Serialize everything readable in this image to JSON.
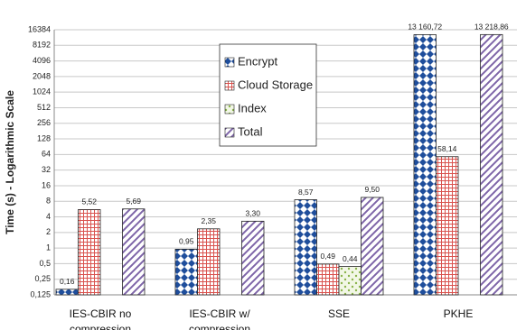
{
  "chart_data": {
    "type": "bar",
    "y_label": "Time (s) - Logarithmic Scale",
    "log_scale": true,
    "grid": true,
    "legend": "top-center",
    "categories": [
      "IES-CBIR no compression",
      "IES-CBIR w/ compression",
      "SSE",
      "PKHE"
    ],
    "series": [
      {
        "name": "Encrypt",
        "color": "#1f4e9c",
        "pattern": "diamond",
        "values": [
          0.16,
          0.95,
          8.57,
          13160.72
        ],
        "value_labels": [
          "0,16",
          "0,95",
          "8,57",
          "13 160,72"
        ]
      },
      {
        "name": "Cloud Storage",
        "color": "#d9534f",
        "pattern": "grid",
        "values": [
          5.52,
          2.35,
          0.49,
          58.14
        ],
        "value_labels": [
          "5,52",
          "2,35",
          "0,49",
          "58,14"
        ]
      },
      {
        "name": "Index",
        "color": "#8ab34a",
        "pattern": "dots",
        "values": [
          null,
          null,
          0.44,
          null
        ],
        "value_labels": [
          null,
          null,
          "0,44",
          null
        ]
      },
      {
        "name": "Total",
        "color": "#7e65a8",
        "pattern": "diagonal",
        "values": [
          5.69,
          3.3,
          9.5,
          13218.86
        ],
        "value_labels": [
          "5,69",
          "3,30",
          "9,50",
          "13 218,86"
        ]
      }
    ],
    "ylim": [
      0.125,
      16384
    ],
    "yticks": [
      {
        "value": 0.125,
        "label": "0,125"
      },
      {
        "value": 0.25,
        "label": "0,25"
      },
      {
        "value": 0.5,
        "label": "0,5"
      },
      1,
      2,
      4,
      8,
      16,
      32,
      64,
      128,
      256,
      512,
      1024,
      2048,
      4096,
      8192,
      16384
    ]
  }
}
